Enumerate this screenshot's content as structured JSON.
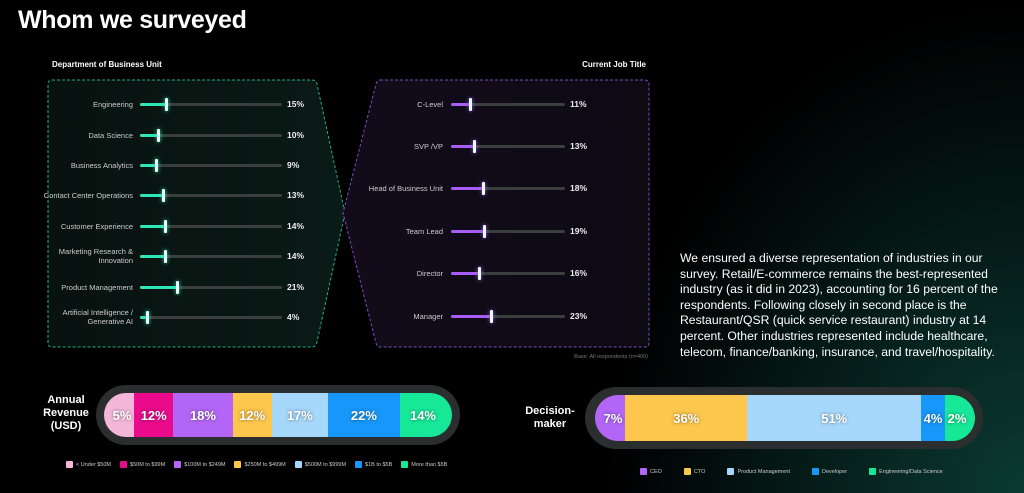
{
  "title": "Whom we surveyed",
  "chart_data": [
    {
      "type": "bar",
      "title": "Department of Business Unit",
      "accent": "#2ee6b8",
      "categories": [
        "Engineering",
        "Data Science",
        "Business Analytics",
        "Contact Center Operations",
        "Customer Experience",
        "Marketing Research & Innovation",
        "Product Management",
        "Artificial Intelligence / Generative AI"
      ],
      "values": [
        15,
        10,
        9,
        13,
        14,
        14,
        21,
        4
      ],
      "labels": [
        "15%",
        "10%",
        "9%",
        "13%",
        "14%",
        "14%",
        "21%",
        "4%"
      ]
    },
    {
      "type": "bar",
      "title": "Current Job Title",
      "accent": "#a65cf5",
      "categories": [
        "C-Level",
        "SVP /VP",
        "Head of Business Unit",
        "Team Lead",
        "Director",
        "Manager"
      ],
      "values": [
        11,
        13,
        18,
        19,
        16,
        23
      ],
      "labels": [
        "11%",
        "13%",
        "18%",
        "19%",
        "16%",
        "23%"
      ]
    },
    {
      "type": "bar",
      "stacked": true,
      "title": "Annual Revenue (USD)",
      "categories": [
        "< Under $50M",
        "$50M to $99M",
        "$100M to $249M",
        "$250M to $499M",
        "$500M to $999M",
        "$1B to $5B",
        "More than $5B"
      ],
      "values": [
        5,
        12,
        18,
        12,
        17,
        22,
        14
      ],
      "labels": [
        "5%",
        "12%",
        "18%",
        "12%",
        "17%",
        "22%",
        "14%"
      ],
      "colors": [
        "#f4b6d9",
        "#ea0a8c",
        "#b366f5",
        "#fdc64c",
        "#a6d8fc",
        "#1797f9",
        "#16e897"
      ]
    },
    {
      "type": "bar",
      "stacked": true,
      "title": "Decision-maker",
      "categories": [
        "CEO",
        "CTO",
        "Product Management",
        "Developer",
        "Engineering/Data Science"
      ],
      "values": [
        7,
        36,
        51,
        4,
        2
      ],
      "labels": [
        "7%",
        "36%",
        "51%",
        "4%",
        "2%"
      ],
      "colors": [
        "#b366f5",
        "#fdc64c",
        "#a6d8fc",
        "#1797f9",
        "#16e897"
      ]
    }
  ],
  "base_note": "Base: All respondents (n=400)",
  "paragraph": "We ensured a diverse representation of industries in our survey. Retail/E-commerce remains the best-represented industry (as it did in 2023), accounting for 16 percent of the respondents. Following closely in second place is the Restaurant/QSR (quick service restaurant) industry at 14 percent. Other industries represented include healthcare, telecom, finance/banking, insurance, and travel/hospitality."
}
